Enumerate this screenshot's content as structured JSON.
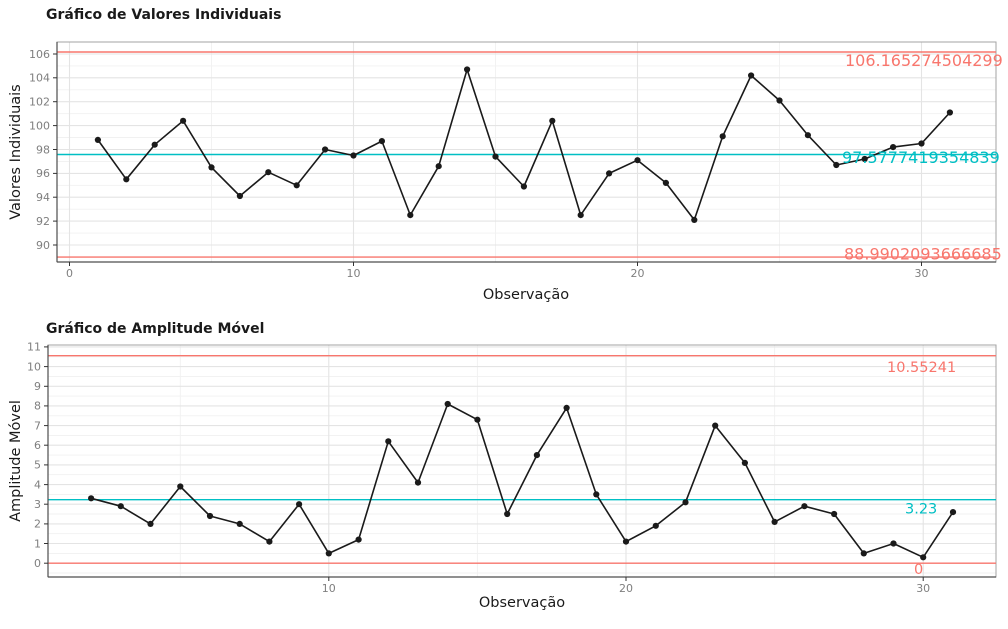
{
  "chart_data": [
    {
      "type": "line",
      "title": "Gráfico de Valores Individuais",
      "xlabel": "Observação",
      "ylabel": "Valores Individuais",
      "series_color": "#1A1A1A",
      "x": [
        1,
        2,
        3,
        4,
        5,
        6,
        7,
        8,
        9,
        10,
        11,
        12,
        13,
        14,
        15,
        16,
        17,
        18,
        19,
        20,
        21,
        22,
        23,
        24,
        25,
        26,
        27,
        28,
        29,
        30,
        31
      ],
      "values": [
        98.8,
        95.5,
        98.4,
        100.4,
        96.5,
        94.1,
        96.1,
        95.0,
        98.0,
        97.5,
        98.7,
        92.5,
        96.6,
        104.7,
        97.4,
        94.9,
        100.4,
        92.5,
        96.0,
        97.1,
        95.2,
        92.1,
        99.1,
        104.2,
        102.1,
        99.2,
        96.7,
        97.2,
        98.2,
        98.5,
        101.1
      ],
      "xticks": [
        0,
        10,
        20,
        30
      ],
      "yticks": [
        90,
        92,
        94,
        96,
        98,
        100,
        102,
        104,
        106
      ],
      "xlim": [
        -0.5,
        32.6
      ],
      "ylim": [
        88.58,
        107.0
      ],
      "grid": true,
      "limits": {
        "ucl": {
          "value": 106.165274504299,
          "label": "106.165274504299",
          "color": "#F8766D"
        },
        "cl": {
          "value": 97.5777419354839,
          "label": "97.5777419354839",
          "color": "#00BFC4"
        },
        "lcl": {
          "value": 88.9902093666685,
          "label": "88.9902093666685",
          "color": "#F8766D"
        }
      }
    },
    {
      "type": "line",
      "title": "Gráfico de Amplitude Móvel",
      "xlabel": "Observação",
      "ylabel": "Amplitude Móvel",
      "series_color": "#1A1A1A",
      "x": [
        2,
        3,
        4,
        5,
        6,
        7,
        8,
        9,
        10,
        11,
        12,
        13,
        14,
        15,
        16,
        17,
        18,
        19,
        20,
        21,
        22,
        23,
        24,
        25,
        26,
        27,
        28,
        29,
        30,
        31
      ],
      "values": [
        3.3,
        2.9,
        2.0,
        3.9,
        2.4,
        2.0,
        1.1,
        3.0,
        0.5,
        1.2,
        6.2,
        4.1,
        8.1,
        7.3,
        2.5,
        5.5,
        7.9,
        3.5,
        1.1,
        1.9,
        3.1,
        7.0,
        5.1,
        2.1,
        2.9,
        2.5,
        0.5,
        1.0,
        0.3,
        2.6
      ],
      "xticks": [
        10,
        20,
        30
      ],
      "yticks": [
        0,
        1,
        2,
        3,
        4,
        5,
        6,
        7,
        8,
        9,
        10,
        11
      ],
      "xlim": [
        0.55,
        32.45
      ],
      "ylim": [
        -0.7,
        11.1
      ],
      "grid": true,
      "limits": {
        "ucl": {
          "value": 10.55241,
          "label": "10.55241",
          "color": "#F8766D"
        },
        "cl": {
          "value": 3.23,
          "label": "3.23",
          "color": "#00BFC4"
        },
        "lcl": {
          "value": 0,
          "label": "0",
          "color": "#F8766D"
        }
      }
    }
  ],
  "style_colors": {
    "limit_line": "#F8766D",
    "center_line": "#00BFC4",
    "series": "#1A1A1A",
    "grid_major": "#E4E4E4",
    "grid_minor": "#F1F1F1",
    "panel_border": "#A3A3A3",
    "axis_line": "#4D4D4D",
    "tick_text": "#7F7F7F",
    "tick_mark": "#333333"
  }
}
